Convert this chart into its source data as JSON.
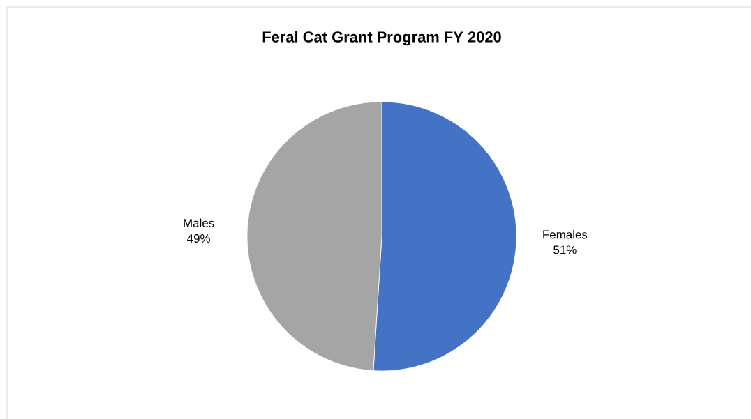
{
  "chart_data": {
    "type": "pie",
    "title": "Feral Cat Grant Program FY 2020",
    "categories": [
      "Females",
      "Males"
    ],
    "values": [
      51,
      49
    ],
    "colors": [
      "#4472c4",
      "#a5a5a5"
    ],
    "value_labels": [
      "51%",
      "49%"
    ]
  }
}
